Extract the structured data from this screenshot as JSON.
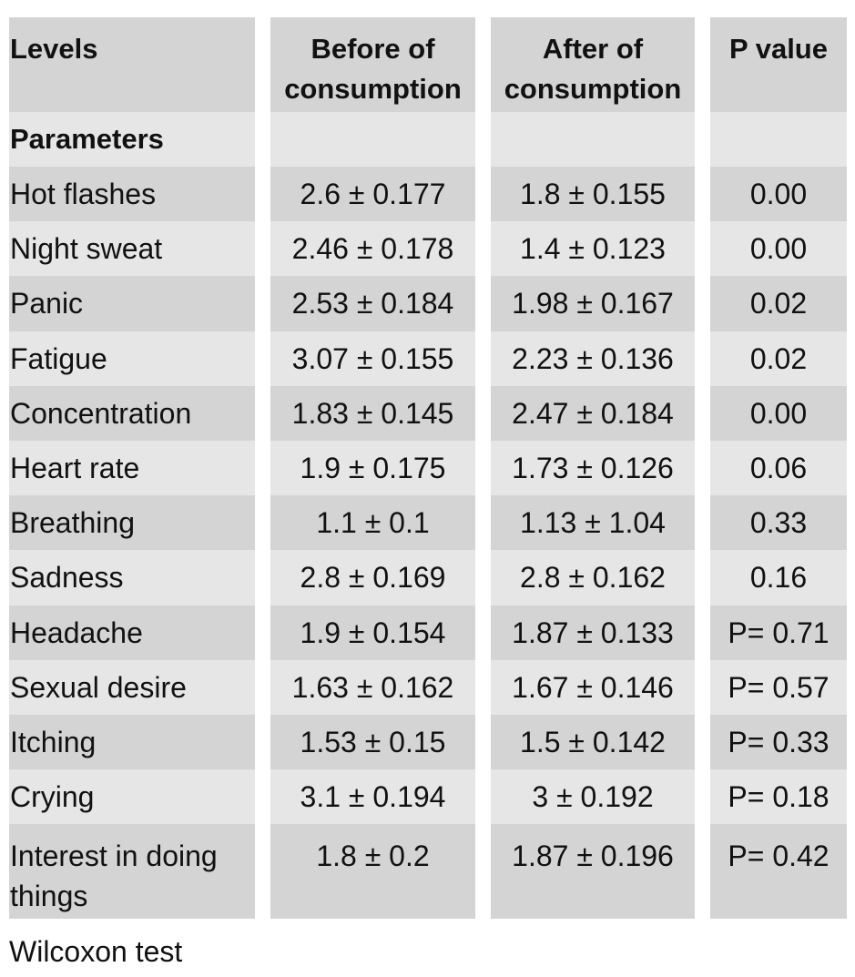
{
  "table": {
    "headers": [
      "Levels",
      "Before of consumption",
      "After of consumption",
      "P value"
    ],
    "subheader": "Parameters",
    "rows": [
      [
        "Hot flashes",
        "2.6 ± 0.177",
        "1.8 ± 0.155",
        "0.00"
      ],
      [
        "Night sweat",
        "2.46 ± 0.178",
        "1.4 ± 0.123",
        "0.00"
      ],
      [
        "Panic",
        "2.53 ± 0.184",
        "1.98 ± 0.167",
        "0.02"
      ],
      [
        "Fatigue",
        "3.07 ± 0.155",
        "2.23 ± 0.136",
        "0.02"
      ],
      [
        "Concentration",
        "1.83 ± 0.145",
        "2.47 ± 0.184",
        "0.00"
      ],
      [
        "Heart rate",
        "1.9 ± 0.175",
        "1.73 ± 0.126",
        "0.06"
      ],
      [
        "Breathing",
        "1.1 ± 0.1",
        "1.13 ± 1.04",
        "0.33"
      ],
      [
        "Sadness",
        "2.8 ± 0.169",
        "2.8 ± 0.162",
        "0.16"
      ],
      [
        "Headache",
        "1.9 ± 0.154",
        "1.87 ± 0.133",
        "P= 0.71"
      ],
      [
        "Sexual desire",
        "1.63 ± 0.162",
        "1.67 ± 0.146",
        "P= 0.57"
      ],
      [
        "Itching",
        "1.53 ± 0.15",
        "1.5 ± 0.142",
        "P= 0.33"
      ],
      [
        "Crying",
        "3.1 ± 0.194",
        "3 ± 0.192",
        "P= 0.18"
      ],
      [
        "Interest in doing things",
        "1.8 ± 0.2",
        "1.87 ± 0.196",
        "P= 0.42"
      ]
    ]
  },
  "footnote": "Wilcoxon test",
  "colors": {
    "dark_band": "#d4d4d4",
    "light_band": "#e6e6e6",
    "text": "#111111"
  }
}
